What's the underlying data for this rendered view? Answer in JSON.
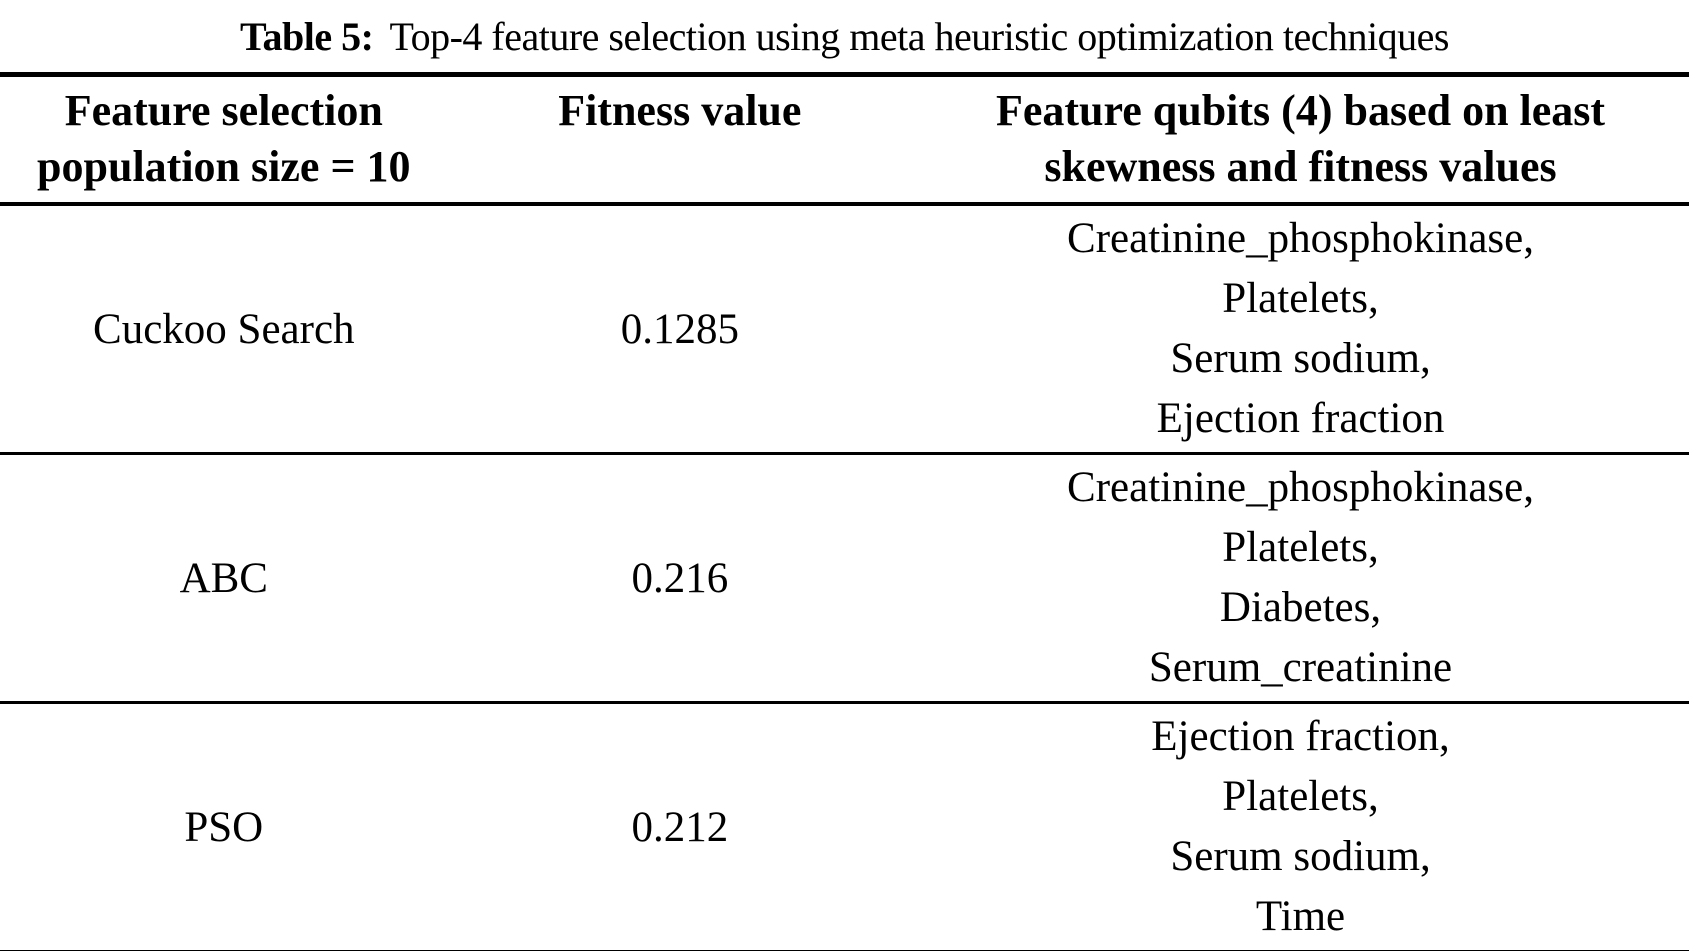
{
  "caption": {
    "label": "Table 5:",
    "text": "Top-4 feature selection using meta heuristic optimization techniques"
  },
  "table": {
    "headers": [
      {
        "lines": [
          "Feature selection",
          "population size = 10"
        ]
      },
      {
        "lines": [
          "Fitness value"
        ]
      },
      {
        "lines": [
          "Feature qubits (4) based on least",
          "skewness and fitness values"
        ]
      }
    ],
    "rows": [
      {
        "method": "Cuckoo Search",
        "fitness": "0.1285",
        "features": [
          "Creatinine_phosphokinase,",
          "Platelets,",
          "Serum sodium,",
          "Ejection fraction"
        ]
      },
      {
        "method": "ABC",
        "fitness": "0.216",
        "features": [
          "Creatinine_phosphokinase,",
          "Platelets,",
          "Diabetes,",
          "Serum_creatinine"
        ]
      },
      {
        "method": "PSO",
        "fitness": "0.212",
        "features": [
          "Ejection fraction,",
          "Platelets,",
          "Serum sodium,",
          "Time"
        ]
      }
    ]
  },
  "colors": {
    "text": "#000000",
    "background": "#ffffff",
    "rule": "#000000"
  }
}
